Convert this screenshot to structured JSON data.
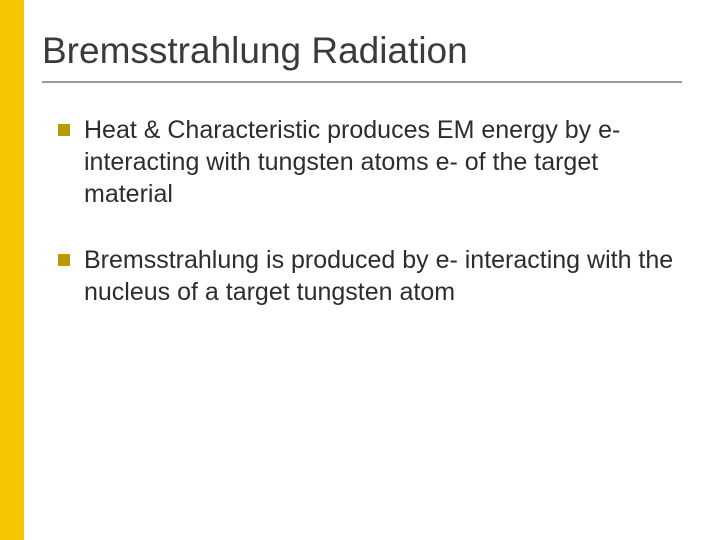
{
  "accent_color": "#f6c500",
  "underline_color": "#9a9a9a",
  "bullet_color": "#b89a00",
  "title_color": "#3b3b3b",
  "body_color": "#2d2d2d",
  "title": "Bremsstrahlung Radiation",
  "bullets": [
    "Heat & Characteristic produces EM energy by e- interacting with tungsten atoms e- of the target material",
    "Bremsstrahlung is produced by e- interacting with the nucleus of a target tungsten atom"
  ]
}
